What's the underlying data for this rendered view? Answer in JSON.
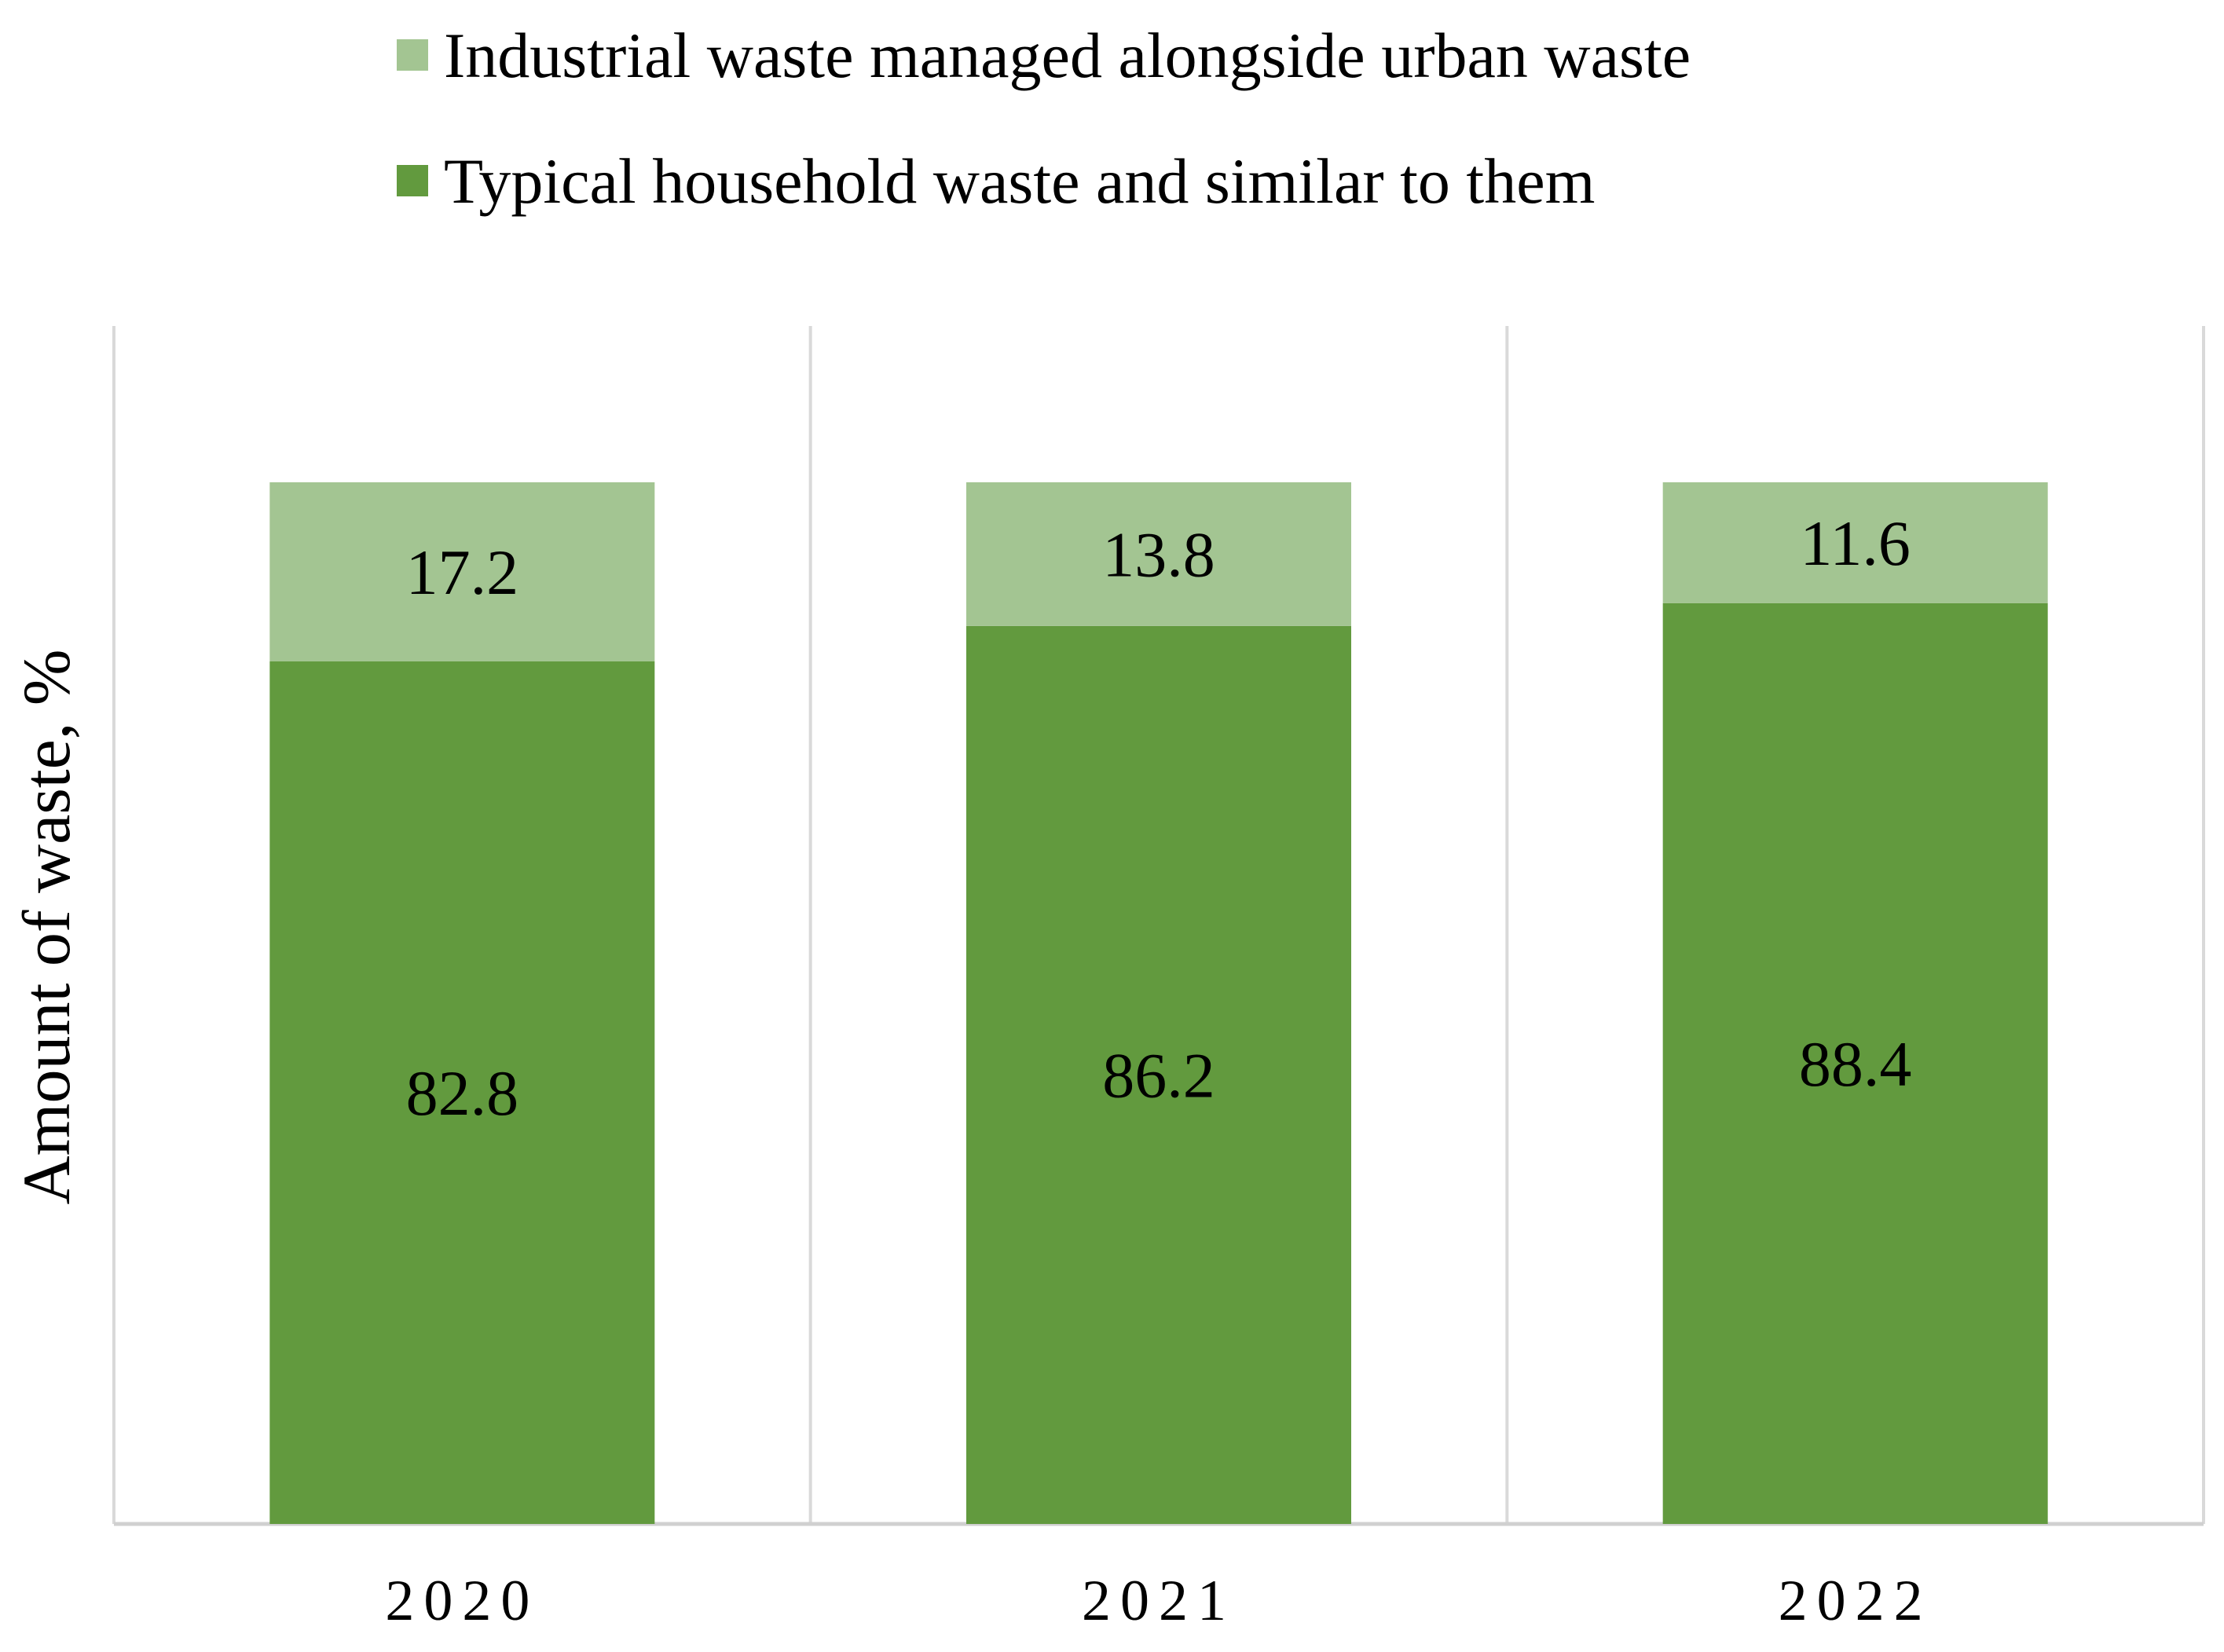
{
  "chart_data": {
    "type": "bar",
    "stacked": true,
    "title": "",
    "xlabel": "",
    "ylabel": "Amount of waste, %",
    "ylim": [
      0,
      115
    ],
    "categories": [
      "2020",
      "2021",
      "2022"
    ],
    "series": [
      {
        "name": "Typical household waste and similar to them",
        "values": [
          82.8,
          86.2,
          88.4
        ],
        "value_labels": [
          "82.8",
          "86.2",
          "88.4"
        ],
        "color": "#629a3e"
      },
      {
        "name": "Industrial waste managed alongside urban waste",
        "values": [
          17.2,
          13.8,
          11.6
        ],
        "value_labels": [
          "17.2",
          "13.8",
          "11.6"
        ],
        "color": "#a3c592"
      }
    ],
    "legend": {
      "position": "top",
      "order": [
        "Industrial waste managed alongside urban waste",
        "Typical household waste and similar to them"
      ]
    },
    "grid": {
      "vertical_category_separators": true,
      "horizontal": false
    },
    "colors": {
      "axis": "#d0d0d0",
      "gridline": "#d9d9d9",
      "text": "#000000"
    }
  }
}
